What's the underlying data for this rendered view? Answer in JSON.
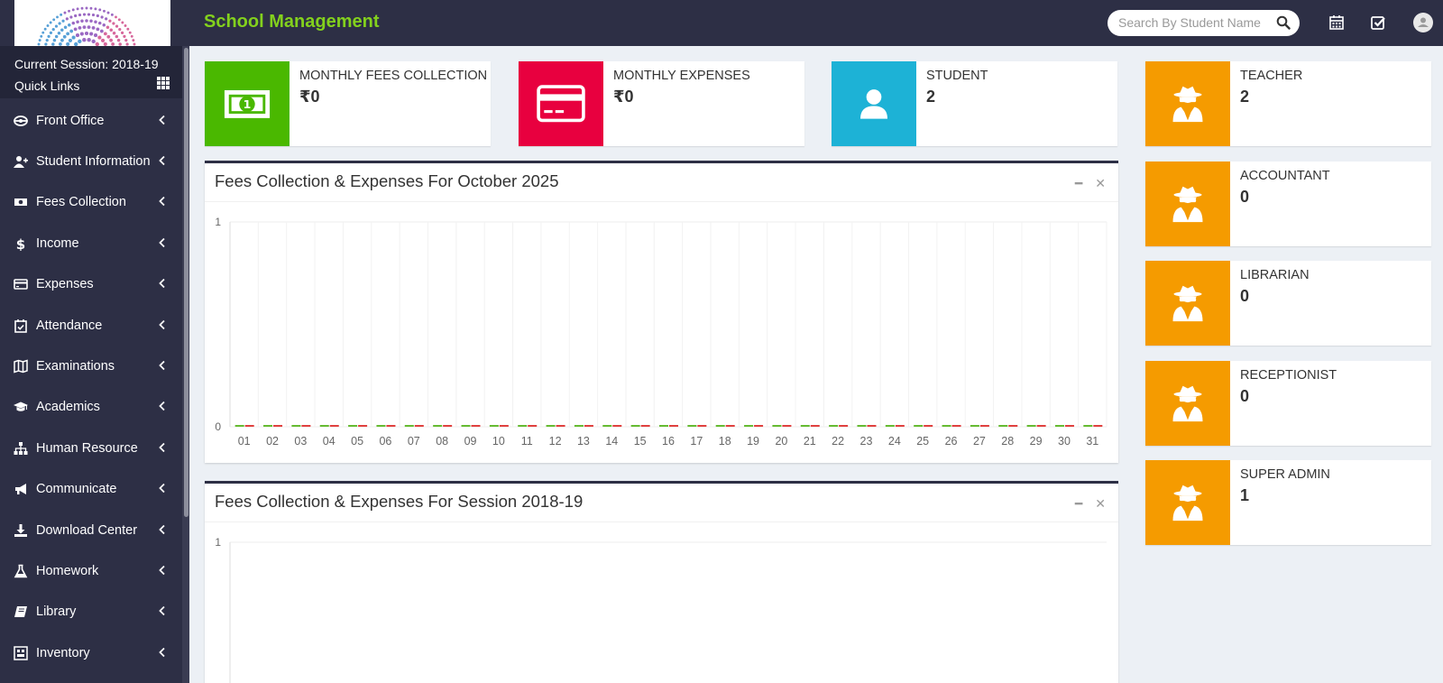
{
  "header": {
    "brand": "School Management",
    "search": {
      "placeholder": "Search By Student Name"
    }
  },
  "sidebar": {
    "session": "Current Session: 2018-19",
    "quick_links": "Quick Links",
    "items": [
      {
        "label": "Front Office",
        "icon": "front-office-icon"
      },
      {
        "label": "Student Information",
        "icon": "user-plus-icon"
      },
      {
        "label": "Fees Collection",
        "icon": "money-icon"
      },
      {
        "label": "Income",
        "icon": "dollar-icon"
      },
      {
        "label": "Expenses",
        "icon": "credit-card-icon"
      },
      {
        "label": "Attendance",
        "icon": "calendar-check-icon"
      },
      {
        "label": "Examinations",
        "icon": "map-icon"
      },
      {
        "label": "Academics",
        "icon": "graduation-cap-icon"
      },
      {
        "label": "Human Resource",
        "icon": "sitemap-icon"
      },
      {
        "label": "Communicate",
        "icon": "bullhorn-icon"
      },
      {
        "label": "Download Center",
        "icon": "download-icon"
      },
      {
        "label": "Homework",
        "icon": "flask-icon"
      },
      {
        "label": "Library",
        "icon": "book-icon"
      },
      {
        "label": "Inventory",
        "icon": "inventory-icon"
      }
    ]
  },
  "cards": [
    {
      "label": "MONTHLY FEES COLLECTION",
      "value": "₹0",
      "color": "#4ab800",
      "icon": "money-icon"
    },
    {
      "label": "MONTHLY EXPENSES",
      "value": "₹0",
      "color": "#e8003f",
      "icon": "credit-card-icon"
    },
    {
      "label": "STUDENT",
      "value": "2",
      "color": "#1db2d6",
      "icon": "user-icon"
    }
  ],
  "staff_cards": [
    {
      "label": "TEACHER",
      "value": "2",
      "color": "#f59b00",
      "icon": "user-secret-icon"
    },
    {
      "label": "ACCOUNTANT",
      "value": "0",
      "color": "#f59b00",
      "icon": "user-secret-icon"
    },
    {
      "label": "LIBRARIAN",
      "value": "0",
      "color": "#f59b00",
      "icon": "user-secret-icon"
    },
    {
      "label": "RECEPTIONIST",
      "value": "0",
      "color": "#f59b00",
      "icon": "user-secret-icon"
    },
    {
      "label": "SUPER ADMIN",
      "value": "1",
      "color": "#f59b00",
      "icon": "user-secret-icon"
    }
  ],
  "boxes": {
    "monthly_title": "Fees Collection & Expenses For October 2025",
    "session_title": "Fees Collection & Expenses For Session 2018-19"
  },
  "chart_data": [
    {
      "type": "bar",
      "title": "Fees Collection & Expenses For October 2025",
      "categories": [
        "01",
        "02",
        "03",
        "04",
        "05",
        "06",
        "07",
        "08",
        "09",
        "10",
        "11",
        "12",
        "13",
        "14",
        "15",
        "16",
        "17",
        "18",
        "19",
        "20",
        "21",
        "22",
        "23",
        "24",
        "25",
        "26",
        "27",
        "28",
        "29",
        "30",
        "31"
      ],
      "series": [
        {
          "values": [
            0,
            0,
            0,
            0,
            0,
            0,
            0,
            0,
            0,
            0,
            0,
            0,
            0,
            0,
            0,
            0,
            0,
            0,
            0,
            0,
            0,
            0,
            0,
            0,
            0,
            0,
            0,
            0,
            0,
            0,
            0
          ],
          "color": "#66bb33"
        },
        {
          "values": [
            0,
            0,
            0,
            0,
            0,
            0,
            0,
            0,
            0,
            0,
            0,
            0,
            0,
            0,
            0,
            0,
            0,
            0,
            0,
            0,
            0,
            0,
            0,
            0,
            0,
            0,
            0,
            0,
            0,
            0,
            0
          ],
          "color": "#e0413f"
        }
      ],
      "ylim": [
        0,
        1
      ],
      "yticks": [
        "1",
        "0"
      ],
      "grid": true
    },
    {
      "type": "bar",
      "title": "Fees Collection & Expenses For Session 2018-19",
      "categories": [],
      "series": [],
      "ylim": [
        0,
        1
      ],
      "yticks": [
        "1"
      ],
      "grid": true
    }
  ]
}
